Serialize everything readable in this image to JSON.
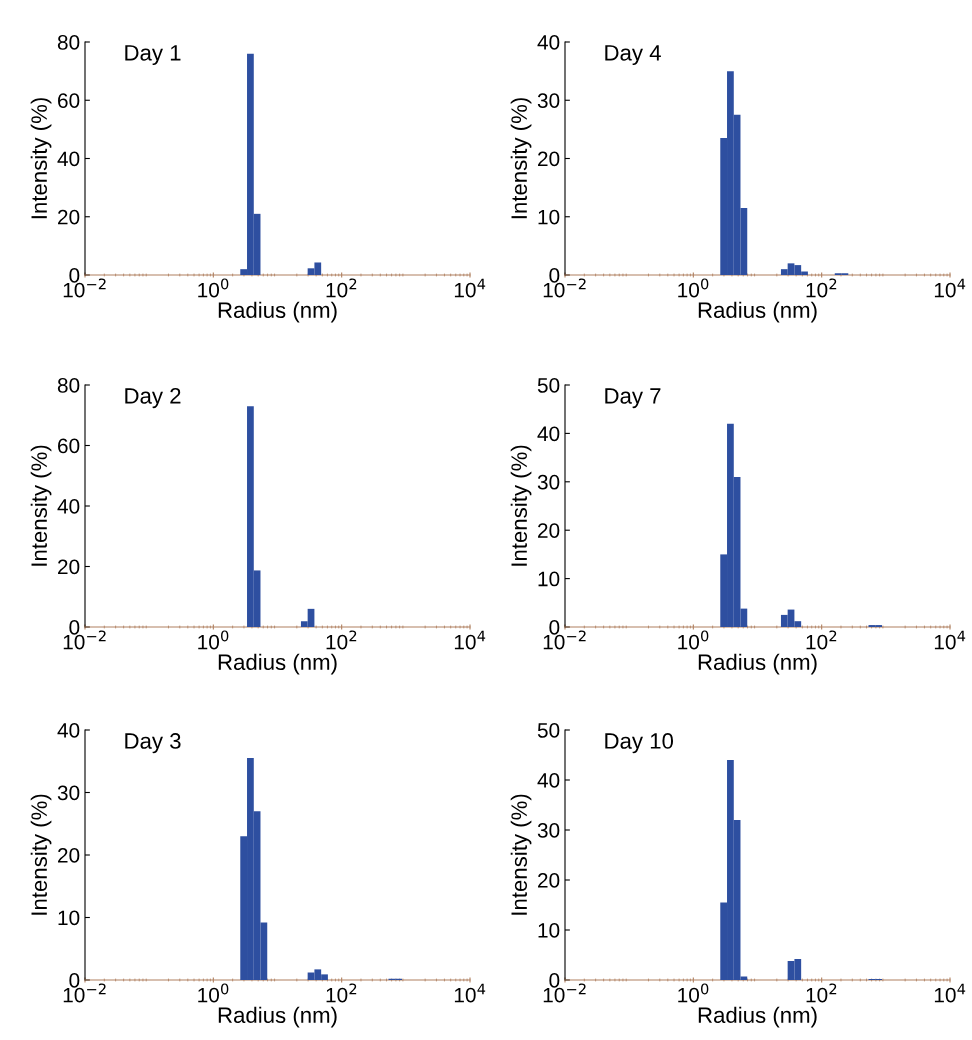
{
  "chart_data": [
    {
      "type": "histogram",
      "title": "Day 1",
      "xlabel": "Radius (nm)",
      "ylabel": "Intensity (%)",
      "log": "x",
      "color": "#2e4fa0",
      "grid": false,
      "bins": [
        2.63,
        3.35,
        4.27,
        5.43,
        6.92,
        8.81,
        11.2,
        14.3,
        18.2,
        23.2,
        29.5,
        37.6,
        47.9,
        61.0,
        77.6,
        98.9,
        126,
        160,
        204,
        260,
        331,
        422,
        537,
        684,
        871
      ],
      "values": [
        2,
        76,
        21,
        0,
        0,
        0,
        0,
        0,
        0,
        0,
        2.3,
        4.3,
        0,
        0,
        0,
        0,
        0,
        0,
        0,
        0,
        0,
        0,
        0,
        0
      ],
      "xlim": [
        0.01,
        10000
      ],
      "xticks": [
        {
          "value": 0.01,
          "label": "10$^{−2}$"
        },
        {
          "value": 1,
          "label": "10$^{0}$"
        },
        {
          "value": 100,
          "label": "10$^{2}$"
        },
        {
          "value": 10000,
          "label": "10$^{4}$"
        }
      ],
      "ylim": [
        0,
        80
      ],
      "yticks": [
        0,
        20,
        40,
        60,
        80
      ]
    },
    {
      "type": "histogram",
      "title": "Day 4",
      "xlabel": "Radius (nm)",
      "ylabel": "Intensity (%)",
      "log": "x",
      "color": "#2e4fa0",
      "grid": false,
      "bins": [
        2.63,
        3.35,
        4.27,
        5.43,
        6.92,
        8.81,
        11.2,
        14.3,
        18.2,
        23.2,
        29.5,
        37.6,
        47.9,
        61.0,
        77.6,
        98.9,
        126,
        160,
        204,
        260,
        331,
        422,
        537,
        684,
        871
      ],
      "values": [
        23.5,
        35,
        27.5,
        11.5,
        0,
        0,
        0,
        0,
        0,
        1,
        2,
        1.7,
        0.6,
        0,
        0,
        0,
        0,
        0.3,
        0.3,
        0,
        0,
        0,
        0,
        0
      ],
      "xlim": [
        0.01,
        10000
      ],
      "xticks": [
        {
          "value": 0.01,
          "label": "10$^{−2}$"
        },
        {
          "value": 1,
          "label": "10$^{0}$"
        },
        {
          "value": 100,
          "label": "10$^{2}$"
        },
        {
          "value": 10000,
          "label": "10$^{4}$"
        }
      ],
      "ylim": [
        0,
        40
      ],
      "yticks": [
        0,
        10,
        20,
        30,
        40
      ]
    },
    {
      "type": "histogram",
      "title": "Day 2",
      "xlabel": "Radius (nm)",
      "ylabel": "Intensity (%)",
      "log": "x",
      "color": "#2e4fa0",
      "grid": false,
      "bins": [
        2.63,
        3.35,
        4.27,
        5.43,
        6.92,
        8.81,
        11.2,
        14.3,
        18.2,
        23.2,
        29.5,
        37.6,
        47.9,
        61.0,
        77.6,
        98.9,
        126,
        160,
        204,
        260,
        331,
        422,
        537,
        684,
        871
      ],
      "values": [
        0,
        73,
        18.7,
        0,
        0,
        0,
        0,
        0,
        0,
        1.9,
        6,
        0,
        0,
        0,
        0,
        0,
        0,
        0,
        0,
        0,
        0,
        0,
        0,
        0
      ],
      "xlim": [
        0.01,
        10000
      ],
      "xticks": [
        {
          "value": 0.01,
          "label": "10$^{−2}$"
        },
        {
          "value": 1,
          "label": "10$^{0}$"
        },
        {
          "value": 100,
          "label": "10$^{2}$"
        },
        {
          "value": 10000,
          "label": "10$^{4}$"
        }
      ],
      "ylim": [
        0,
        80
      ],
      "yticks": [
        0,
        20,
        40,
        60,
        80
      ]
    },
    {
      "type": "histogram",
      "title": "Day 7",
      "xlabel": "Radius (nm)",
      "ylabel": "Intensity (%)",
      "log": "x",
      "color": "#2e4fa0",
      "grid": false,
      "bins": [
        2.63,
        3.35,
        4.27,
        5.43,
        6.92,
        8.81,
        11.2,
        14.3,
        18.2,
        23.2,
        29.5,
        37.6,
        47.9,
        61.0,
        77.6,
        98.9,
        126,
        160,
        204,
        260,
        331,
        422,
        537,
        684,
        871
      ],
      "values": [
        15,
        42,
        31,
        3.8,
        0,
        0,
        0,
        0,
        0,
        2.5,
        3.6,
        1.2,
        0,
        0,
        0,
        0,
        0,
        0,
        0,
        0,
        0,
        0,
        0.4,
        0.4
      ],
      "xlim": [
        0.01,
        10000
      ],
      "xticks": [
        {
          "value": 0.01,
          "label": "10$^{−2}$"
        },
        {
          "value": 1,
          "label": "10$^{0}$"
        },
        {
          "value": 100,
          "label": "10$^{2}$"
        },
        {
          "value": 10000,
          "label": "10$^{4}$"
        }
      ],
      "ylim": [
        0,
        50
      ],
      "yticks": [
        0,
        10,
        20,
        30,
        40,
        50
      ]
    },
    {
      "type": "histogram",
      "title": "Day 3",
      "xlabel": "Radius (nm)",
      "ylabel": "Intensity (%)",
      "log": "x",
      "color": "#2e4fa0",
      "grid": false,
      "bins": [
        2.63,
        3.35,
        4.27,
        5.43,
        6.92,
        8.81,
        11.2,
        14.3,
        18.2,
        23.2,
        29.5,
        37.6,
        47.9,
        61.0,
        77.6,
        98.9,
        126,
        160,
        204,
        260,
        331,
        422,
        537,
        684,
        871
      ],
      "values": [
        23,
        35.5,
        27,
        9.2,
        0,
        0,
        0,
        0,
        0,
        0,
        1.2,
        1.7,
        0.9,
        0,
        0,
        0,
        0,
        0,
        0,
        0,
        0,
        0,
        0.2,
        0.2
      ],
      "xlim": [
        0.01,
        10000
      ],
      "xticks": [
        {
          "value": 0.01,
          "label": "10$^{−2}$"
        },
        {
          "value": 1,
          "label": "10$^{0}$"
        },
        {
          "value": 100,
          "label": "10$^{2}$"
        },
        {
          "value": 10000,
          "label": "10$^{4}$"
        }
      ],
      "ylim": [
        0,
        40
      ],
      "yticks": [
        0,
        10,
        20,
        30,
        40
      ]
    },
    {
      "type": "histogram",
      "title": "Day 10",
      "xlabel": "Radius (nm)",
      "ylabel": "Intensity (%)",
      "log": "x",
      "color": "#2e4fa0",
      "grid": false,
      "bins": [
        2.63,
        3.35,
        4.27,
        5.43,
        6.92,
        8.81,
        11.2,
        14.3,
        18.2,
        23.2,
        29.5,
        37.6,
        47.9,
        61.0,
        77.6,
        98.9,
        126,
        160,
        204,
        260,
        331,
        422,
        537,
        684,
        871
      ],
      "values": [
        15.5,
        44,
        32,
        0.7,
        0,
        0,
        0,
        0,
        0,
        0,
        3.8,
        4.2,
        0,
        0,
        0,
        0,
        0,
        0,
        0,
        0,
        0,
        0,
        0.2,
        0.2
      ],
      "xlim": [
        0.01,
        10000
      ],
      "xticks": [
        {
          "value": 0.01,
          "label": "10$^{−2}$"
        },
        {
          "value": 1,
          "label": "10$^{0}$"
        },
        {
          "value": 100,
          "label": "10$^{2}$"
        },
        {
          "value": 10000,
          "label": "10$^{4}$"
        }
      ],
      "ylim": [
        0,
        50
      ],
      "yticks": [
        0,
        10,
        20,
        30,
        40,
        50
      ]
    }
  ]
}
